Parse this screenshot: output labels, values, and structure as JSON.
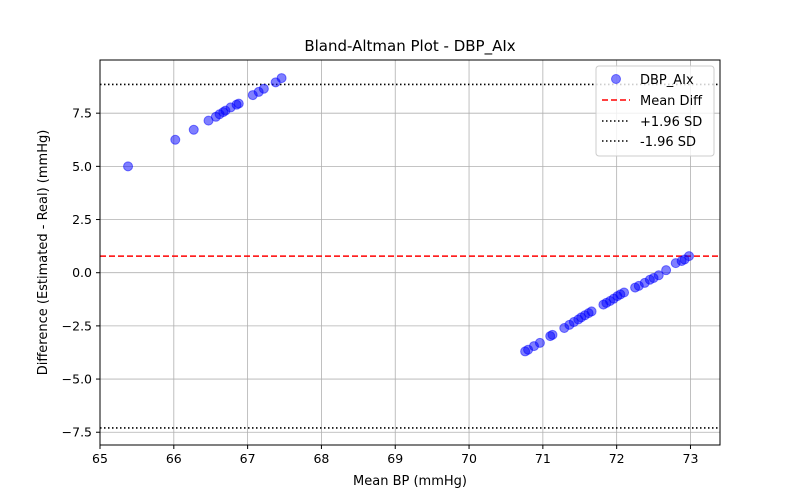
{
  "chart_data": {
    "type": "scatter",
    "title": "Bland-Altman Plot - DBP_AIx",
    "xlabel": "Mean BP (mmHg)",
    "ylabel": "Difference (Estimated - Real) (mmHg)",
    "xlim": [
      65.0,
      73.4
    ],
    "ylim": [
      -8.1,
      10.0
    ],
    "xticks": [
      65,
      66,
      67,
      68,
      69,
      70,
      71,
      72,
      73
    ],
    "yticks": [
      -7.5,
      -5.0,
      -2.5,
      0.0,
      2.5,
      5.0,
      7.5
    ],
    "ytick_labels": [
      "−7.5",
      "−5.0",
      "−2.5",
      "0.0",
      "2.5",
      "5.0",
      "7.5"
    ],
    "grid": true,
    "legend_position": "top-right",
    "colors": {
      "points": "#0000ff",
      "mean": "#ff0000",
      "limits": "#000000",
      "grid": "#b0b0b0"
    },
    "series": [
      {
        "name": "DBP_AIx",
        "x": [
          65.38,
          66.02,
          66.27,
          66.47,
          66.57,
          66.62,
          66.67,
          66.7,
          66.77,
          66.85,
          66.88,
          67.07,
          67.15,
          67.22,
          67.38,
          67.46,
          70.76,
          70.8,
          70.88,
          70.96,
          71.1,
          71.13,
          71.29,
          71.36,
          71.42,
          71.48,
          71.52,
          71.57,
          71.62,
          71.66,
          71.82,
          71.86,
          71.91,
          71.96,
          72.01,
          72.05,
          72.1,
          72.25,
          72.3,
          72.38,
          72.45,
          72.5,
          72.57,
          72.67,
          72.8,
          72.88,
          72.92,
          72.98
        ],
        "y": [
          5.0,
          6.25,
          6.72,
          7.15,
          7.33,
          7.45,
          7.55,
          7.62,
          7.77,
          7.9,
          7.95,
          8.35,
          8.5,
          8.65,
          8.95,
          9.15,
          -3.7,
          -3.62,
          -3.45,
          -3.3,
          -2.98,
          -2.92,
          -2.6,
          -2.45,
          -2.32,
          -2.2,
          -2.1,
          -2.0,
          -1.9,
          -1.82,
          -1.5,
          -1.42,
          -1.33,
          -1.22,
          -1.1,
          -1.02,
          -0.93,
          -0.7,
          -0.62,
          -0.48,
          -0.33,
          -0.25,
          -0.12,
          0.12,
          0.45,
          0.55,
          0.62,
          0.78
        ]
      }
    ],
    "reference_lines": [
      {
        "label": "Mean Diff",
        "y": 0.78,
        "style": "dashed",
        "color": "#ff0000"
      },
      {
        "label": "+1.96 SD",
        "y": 8.85,
        "style": "dotted",
        "color": "#000000"
      },
      {
        "label": "-1.96 SD",
        "y": -7.3,
        "style": "dotted",
        "color": "#000000"
      }
    ]
  }
}
